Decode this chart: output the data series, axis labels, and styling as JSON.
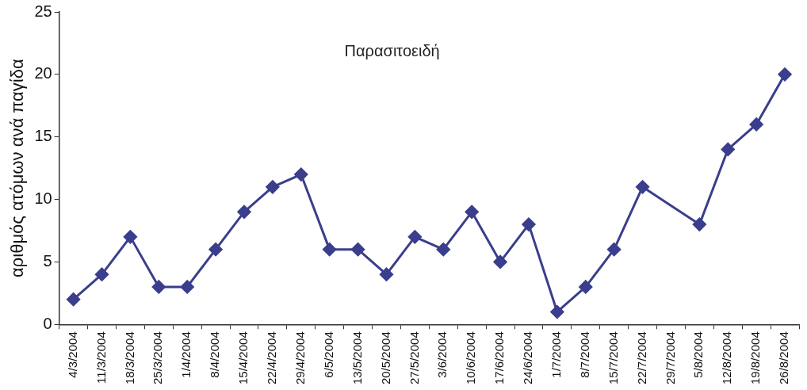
{
  "chart_data": {
    "type": "line",
    "title": "Παρασιτοειδή",
    "ylabel": "αριθμός ατόμων ανά παγίδα",
    "categories": [
      "4/3/2004",
      "11/3/2004",
      "18/3/2004",
      "25/3/2004",
      "1/4/2004",
      "8/4/2004",
      "15/4/2004",
      "22/4/2004",
      "29/4/2004",
      "6/5/2004",
      "13/5/2004",
      "20/5/2004",
      "27/5/2004",
      "3/6/2004",
      "10/6/2004",
      "17/6/2004",
      "24/6/2004",
      "1/7/2004",
      "8/7/2004",
      "15/7/2004",
      "22/7/2004",
      "29/7/2004",
      "5/8/2004",
      "12/8/2004",
      "19/8/2004",
      "26/8/2004"
    ],
    "series": [
      {
        "color": "#3a3e8c",
        "values": [
          2,
          4,
          7,
          3,
          3,
          6,
          9,
          11,
          12,
          6,
          6,
          4,
          7,
          6,
          9,
          5,
          8,
          1,
          3,
          6,
          11,
          null,
          8,
          14,
          16,
          20
        ]
      }
    ],
    "ylim": [
      0,
      25
    ],
    "yticks": [
      0,
      5,
      10,
      15,
      20,
      25
    ],
    "grid": false,
    "legend": false,
    "marker": "diamond",
    "line_style": "solid"
  }
}
